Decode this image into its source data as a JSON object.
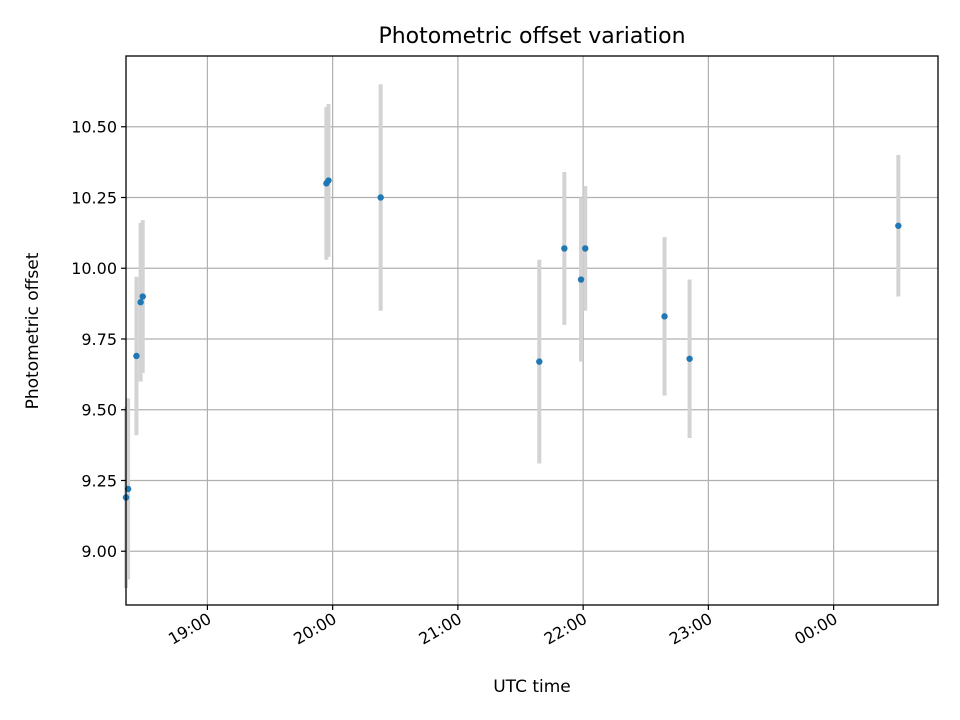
{
  "chart_data": {
    "type": "scatter",
    "title": "Photometric offset variation",
    "xlabel": "UTC time",
    "ylabel": "Photometric offset",
    "grid": true,
    "xlim": [
      "18:21",
      "00:50"
    ],
    "ylim": [
      8.81,
      10.75
    ],
    "x_ticks": [
      "19:00",
      "20:00",
      "21:00",
      "22:00",
      "23:00",
      "00:00"
    ],
    "y_ticks": [
      9.0,
      9.25,
      9.5,
      9.75,
      10.0,
      10.25,
      10.5
    ],
    "colors": {
      "points": "#1f77b4",
      "errorbars": "#d3d3d3"
    },
    "points": [
      {
        "t": "18:21",
        "y": 9.19,
        "err": 0.32
      },
      {
        "t": "18:22",
        "y": 9.22,
        "err": 0.32
      },
      {
        "t": "18:26",
        "y": 9.69,
        "err": 0.28
      },
      {
        "t": "18:28",
        "y": 9.88,
        "err": 0.28
      },
      {
        "t": "18:29",
        "y": 9.9,
        "err": 0.27
      },
      {
        "t": "19:57",
        "y": 10.3,
        "err": 0.27
      },
      {
        "t": "19:58",
        "y": 10.31,
        "err": 0.27
      },
      {
        "t": "20:23",
        "y": 10.25,
        "err": 0.4
      },
      {
        "t": "21:39",
        "y": 9.67,
        "err": 0.36
      },
      {
        "t": "21:51",
        "y": 10.07,
        "err": 0.27
      },
      {
        "t": "21:59",
        "y": 9.96,
        "err": 0.29
      },
      {
        "t": "22:01",
        "y": 10.07,
        "err": 0.22
      },
      {
        "t": "22:39",
        "y": 9.83,
        "err": 0.28
      },
      {
        "t": "22:51",
        "y": 9.68,
        "err": 0.28
      },
      {
        "t": "00:31",
        "y": 10.15,
        "err": 0.25
      }
    ]
  }
}
